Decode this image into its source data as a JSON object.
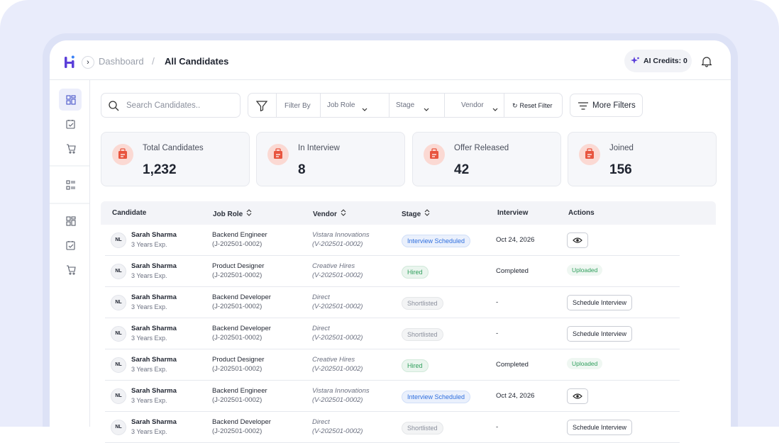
{
  "header": {
    "breadcrumb": [
      "Dashboard",
      "/",
      "All Candidates"
    ],
    "ai_credits": "AI Credits: 0"
  },
  "toolbar": {
    "search_placeholder": "Search Candidates..",
    "filter_by": "Filter By",
    "filters": [
      "Job Role",
      "Stage",
      "Vendor"
    ],
    "reset": "Reset Filter",
    "more_filters": "More Filters"
  },
  "stats": [
    {
      "label": "Total Candidates",
      "value": "1,232"
    },
    {
      "label": "In Interview",
      "value": "8"
    },
    {
      "label": "Offer Released",
      "value": "42"
    },
    {
      "label": "Joined",
      "value": "156"
    }
  ],
  "table": {
    "columns": [
      {
        "label": "Candidate",
        "sortable": false
      },
      {
        "label": "Job Role",
        "sortable": true
      },
      {
        "label": "Vendor",
        "sortable": true
      },
      {
        "label": "Stage",
        "sortable": true
      },
      {
        "label": "Interview",
        "sortable": false
      },
      {
        "label": "Actions",
        "sortable": false
      }
    ],
    "rows": [
      {
        "avatar": "NL",
        "name": "Sarah Sharma",
        "experience": "3 Years Exp.",
        "job_role": "Backend Engineer",
        "job_id": "(J-202501-0002)",
        "vendor": "Vistara Innovations",
        "vendor_id": "(V-202501-0002)",
        "stage": {
          "label": "Interview Scheduled",
          "color": "#2f6fde"
        },
        "interview": "Oct 24, 2026",
        "action": null
      },
      {
        "avatar": "NL",
        "name": "Sarah Sharma",
        "experience": "3 Years Exp.",
        "job_role": "Product Designer",
        "job_id": "(J-202501-0002)",
        "vendor": "Creative Hires",
        "vendor_id": "(V-202501-0002)",
        "stage": {
          "label": "Hired",
          "color": "#2e9e5b"
        },
        "interview": "Completed",
        "action": {
          "label": "Uploaded",
          "color": "#2e9e5b"
        }
      },
      {
        "avatar": "NL",
        "name": "Sarah Sharma",
        "experience": "3 Years Exp.",
        "job_role": "Backend Developer",
        "job_id": "(J-202501-0002)",
        "vendor": "Direct",
        "vendor_id": "(V-202501-0002)",
        "stage": {
          "label": "Shortlisted",
          "color": "#8a8f9c"
        },
        "interview": "-",
        "action": {
          "label": "Schedule Interview"
        }
      },
      {
        "avatar": "NL",
        "name": "Sarah Sharma",
        "experience": "3 Years Exp.",
        "job_role": "Backend Developer",
        "job_id": "(J-202501-0002)",
        "vendor": "Direct",
        "vendor_id": "(V-202501-0002)",
        "stage": {
          "label": "Shortlisted",
          "color": "#8a8f9c"
        },
        "interview": "-",
        "action": {
          "label": "Schedule Interview"
        }
      },
      {
        "avatar": "NL",
        "name": "Sarah Sharma",
        "experience": "3 Years Exp.",
        "job_role": "Product Designer",
        "job_id": "(J-202501-0002)",
        "vendor": "Creative Hires",
        "vendor_id": "(V-202501-0002)",
        "stage": {
          "label": "Hired",
          "color": "#2e9e5b"
        },
        "interview": "Completed",
        "action": {
          "label": "Uploaded",
          "color": "#2e9e5b"
        }
      },
      {
        "avatar": "NL",
        "name": "Sarah Sharma",
        "experience": "3 Years Exp.",
        "job_role": "Backend Engineer",
        "job_id": "(J-202501-0002)",
        "vendor": "Vistara Innovations",
        "vendor_id": "(V-202501-0002)",
        "stage": {
          "label": "Interview Scheduled",
          "color": "#2f6fde"
        },
        "interview": "Oct 24, 2026",
        "action": null
      },
      {
        "avatar": "NL",
        "name": "Sarah Sharma",
        "experience": "3 Years Exp.",
        "job_role": "Backend Developer",
        "job_id": "(J-202501-0002)",
        "vendor": "Direct",
        "vendor_id": "(V-202501-0002)",
        "stage": {
          "label": "Shortlisted",
          "color": "#8a8f9c"
        },
        "interview": "-",
        "action": {
          "label": "Schedule Interview"
        }
      }
    ]
  }
}
